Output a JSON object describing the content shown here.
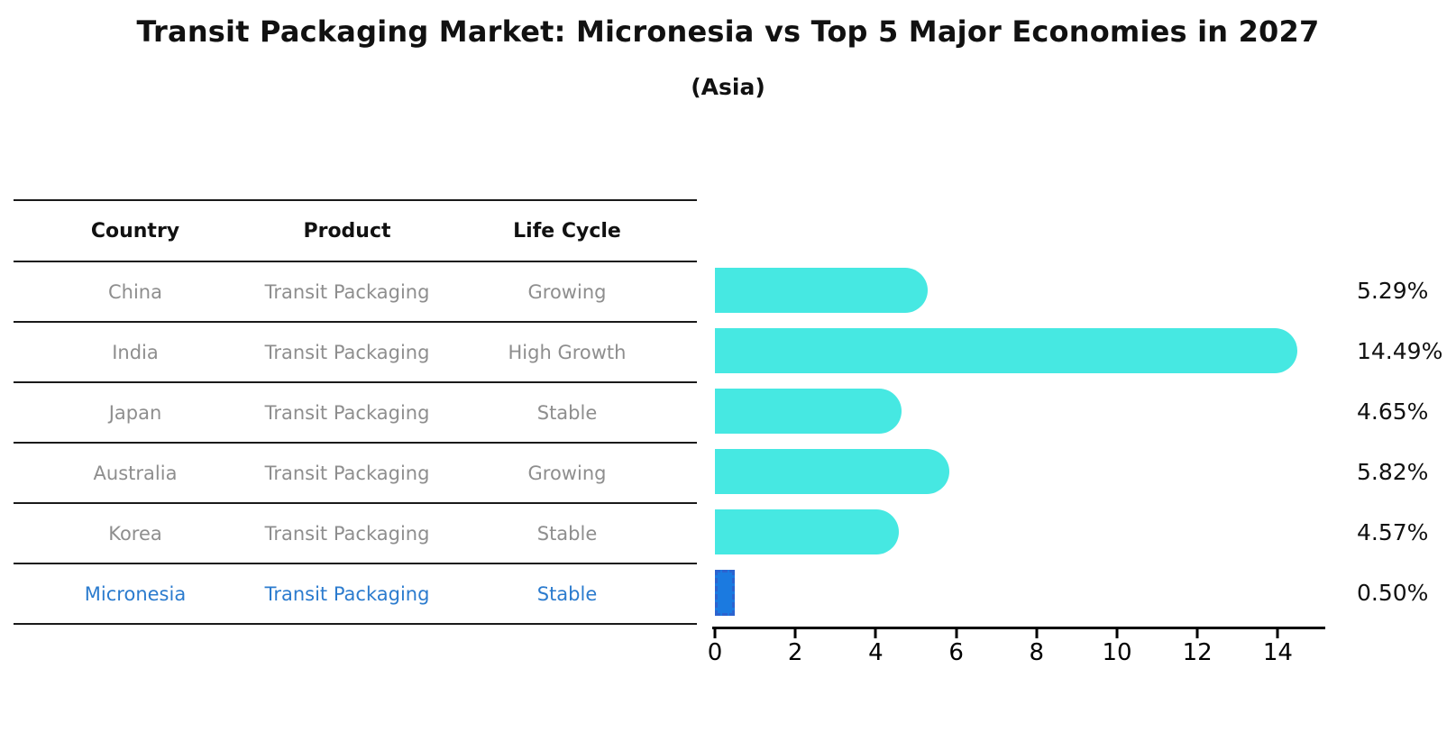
{
  "title": "Transit Packaging Market: Micronesia vs Top 5 Major Economies in 2027",
  "subtitle": "(Asia)",
  "table": {
    "headers": [
      "Country",
      "Product",
      "Life Cycle"
    ],
    "rows": [
      {
        "country": "China",
        "product": "Transit Packaging",
        "life_cycle": "Growing",
        "highlight": false
      },
      {
        "country": "India",
        "product": "Transit Packaging",
        "life_cycle": "High Growth",
        "highlight": false
      },
      {
        "country": "Japan",
        "product": "Transit Packaging",
        "life_cycle": "Stable",
        "highlight": false
      },
      {
        "country": "Australia",
        "product": "Transit Packaging",
        "life_cycle": "Growing",
        "highlight": false
      },
      {
        "country": "Korea",
        "product": "Transit Packaging",
        "life_cycle": "Stable",
        "highlight": false
      },
      {
        "country": "Micronesia",
        "product": "Transit Packaging",
        "life_cycle": "Stable",
        "highlight": true
      }
    ]
  },
  "chart_data": {
    "type": "bar",
    "orientation": "horizontal",
    "title": "Transit Packaging Market: Micronesia vs Top 5 Major Economies in 2027",
    "subtitle": "(Asia)",
    "categories": [
      "China",
      "India",
      "Japan",
      "Australia",
      "Korea",
      "Micronesia"
    ],
    "values": [
      5.29,
      14.49,
      4.65,
      5.82,
      4.57,
      0.5
    ],
    "value_labels": [
      "5.29%",
      "14.49%",
      "4.65%",
      "5.82%",
      "4.57%",
      "0.50%"
    ],
    "highlight_category": "Micronesia",
    "xlabel": "",
    "ylabel": "",
    "xlim": [
      0,
      15.2
    ],
    "x_ticks": [
      0,
      2,
      4,
      6,
      8,
      10,
      12,
      14
    ],
    "grid": false,
    "legend": false,
    "colors": {
      "bar_default": "#46e8e2",
      "bar_highlight": "#1b7ae0",
      "bar_highlight_border": "#2c63cf",
      "highlight_text": "#2b7bce",
      "row_text": "#8e8e8e",
      "header_text": "#111111",
      "axis": "#000000"
    }
  }
}
